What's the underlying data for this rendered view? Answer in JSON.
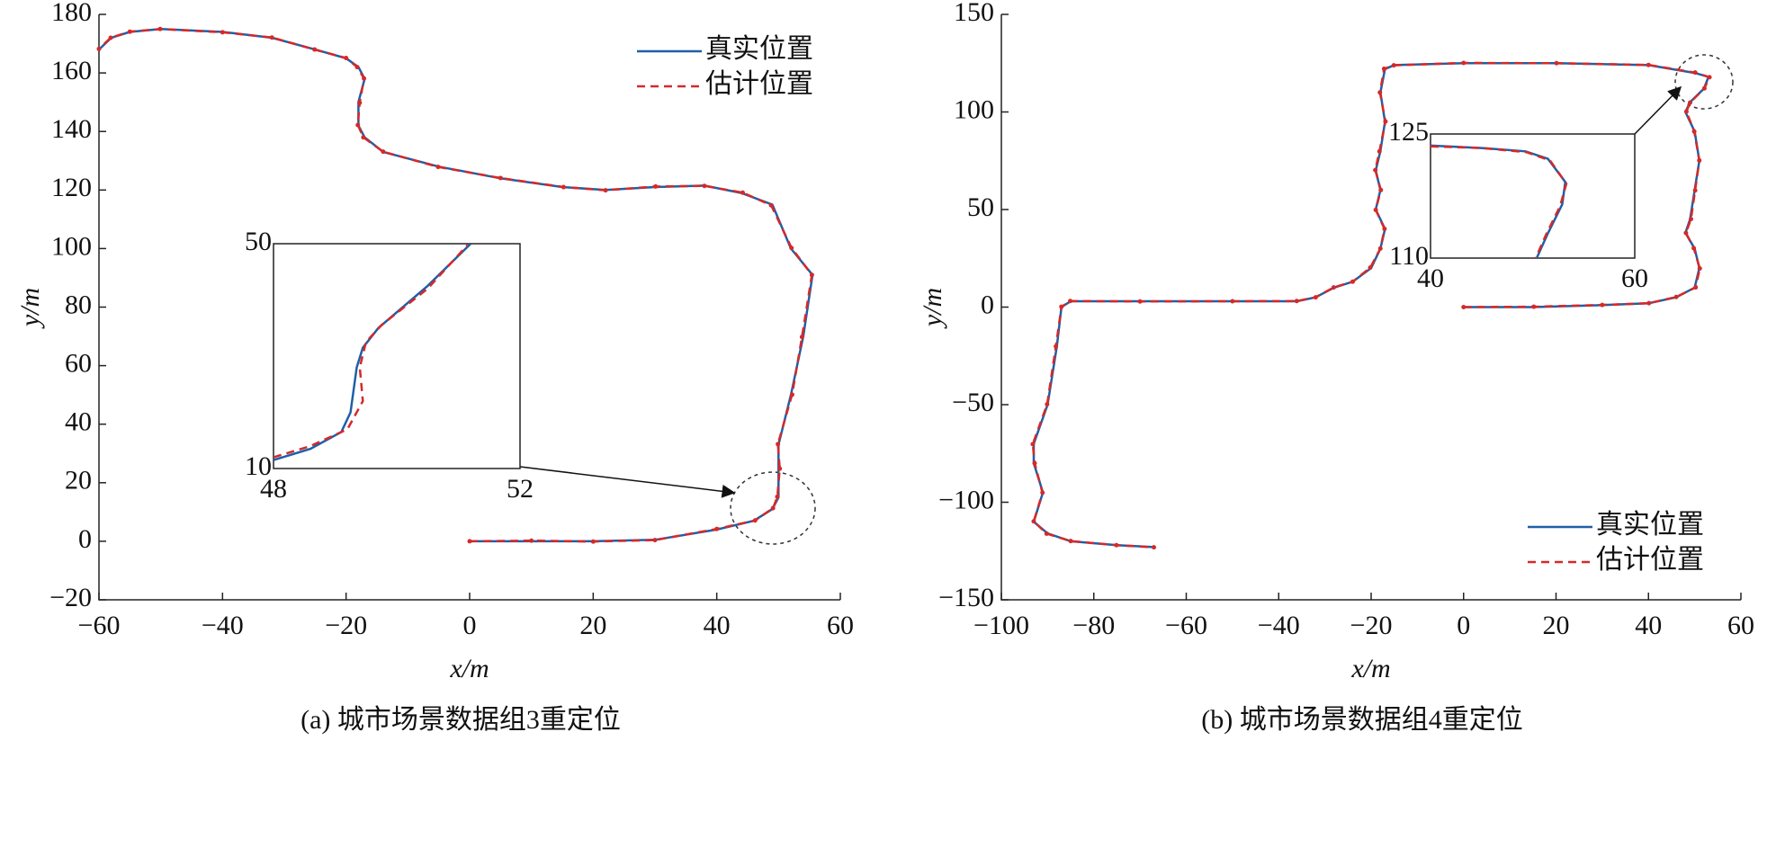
{
  "chart_data": [
    {
      "type": "line",
      "caption": "(a) 城市场景数据组3重定位",
      "xlabel": "x/m",
      "ylabel": "y/m",
      "xlim": [
        -60,
        60
      ],
      "ylim": [
        -20,
        180
      ],
      "xticks": [
        {
          "value": -60,
          "label": "−60"
        },
        {
          "value": -40,
          "label": "−40"
        },
        {
          "value": -20,
          "label": "−20"
        },
        0,
        20,
        40,
        60
      ],
      "yticks": [
        {
          "value": -20,
          "label": "−20"
        },
        0,
        20,
        40,
        60,
        80,
        100,
        120,
        140,
        160,
        180
      ],
      "legend": "top-right",
      "series": [
        {
          "name": "真实位置",
          "color": "#1f5fa8",
          "line_style": "solid",
          "x": [
            0,
            10,
            20,
            30,
            40,
            46,
            49,
            50,
            50,
            50,
            52,
            54,
            55.5,
            52,
            49,
            44,
            38,
            30,
            22,
            15,
            5,
            -5,
            -14,
            -17,
            -18,
            -18,
            -17,
            -18,
            -20,
            -25,
            -32,
            -40,
            -50,
            -55,
            -58,
            -60
          ],
          "values": [
            0,
            0,
            0,
            0.5,
            4,
            7,
            11,
            15,
            25,
            33,
            50,
            70,
            91,
            100,
            115,
            119,
            121.5,
            121,
            120,
            121,
            124,
            128,
            133,
            138,
            142,
            150,
            158,
            162,
            165,
            168,
            172,
            174,
            175,
            174,
            172,
            168
          ]
        },
        {
          "name": "估计位置",
          "color": "#d42a2a",
          "line_style": "dashed",
          "x": [
            0,
            10,
            20,
            30,
            40,
            46.2,
            49.1,
            49.8,
            50.2,
            49.9,
            52.2,
            53.8,
            55.4,
            52.1,
            48.8,
            44.2,
            38,
            30.1,
            22,
            15.2,
            5,
            -5.1,
            -14,
            -17.2,
            -18.1,
            -17.8,
            -17.1,
            -18.2,
            -20,
            -25.1,
            -32,
            -40,
            -50.1,
            -55,
            -58.1,
            -60
          ],
          "values": [
            0,
            0.2,
            -0.1,
            0.4,
            4.2,
            7.1,
            11.3,
            15.2,
            24.8,
            33.2,
            50.1,
            69.8,
            91,
            100.2,
            114.8,
            119.1,
            121.4,
            121.2,
            119.9,
            121,
            124.1,
            127.9,
            133.1,
            138,
            142.2,
            149.8,
            158.1,
            162,
            165.1,
            168,
            172.1,
            173.9,
            175,
            174.1,
            172,
            168.2
          ]
        }
      ],
      "inset": {
        "xlim": [
          48,
          52
        ],
        "ylim": [
          10,
          50
        ],
        "xticks": [
          48,
          52
        ],
        "yticks": [
          10,
          50
        ],
        "series": [
          {
            "x": [
              48,
              48.6,
              49.1,
              49.25,
              49.35,
              49.45,
              49.7,
              50.5,
              51.2
            ],
            "values": [
              11.5,
              13.5,
              16.5,
              20,
              28,
              31.5,
              35,
              42.5,
              50
            ]
          },
          {
            "x": [
              48,
              48.6,
              49.2,
              49.45,
              49.4,
              49.5,
              49.75,
              50.5,
              51.15
            ],
            "values": [
              12,
              14,
              17,
              22,
              28,
              32.5,
              35.5,
              42,
              49.8
            ]
          }
        ]
      }
    },
    {
      "type": "line",
      "caption": "(b) 城市场景数据组4重定位",
      "xlabel": "x/m",
      "ylabel": "y/m",
      "xlim": [
        -100,
        60
      ],
      "ylim": [
        -150,
        150
      ],
      "xticks": [
        {
          "value": -100,
          "label": "−100"
        },
        {
          "value": -80,
          "label": "−80"
        },
        {
          "value": -60,
          "label": "−60"
        },
        {
          "value": -40,
          "label": "−40"
        },
        {
          "value": -20,
          "label": "−20"
        },
        0,
        20,
        40,
        60
      ],
      "yticks": [
        {
          "value": -150,
          "label": "−150"
        },
        {
          "value": -100,
          "label": "−100"
        },
        {
          "value": -50,
          "label": "−50"
        },
        0,
        50,
        100,
        150
      ],
      "legend": "bottom-right",
      "series": [
        {
          "name": "真实位置",
          "color": "#1f5fa8",
          "line_style": "solid",
          "x": [
            0,
            15,
            30,
            40,
            46,
            50,
            51,
            50,
            48,
            49,
            50,
            51,
            50,
            48,
            49,
            52,
            53,
            50,
            40,
            20,
            0,
            -15,
            -17,
            -18,
            -17,
            -18,
            -19,
            -18,
            -19,
            -17,
            -18,
            -20,
            -24,
            -28,
            -32,
            -36,
            -50,
            -70,
            -85,
            -87,
            -88,
            -90,
            -93,
            -93,
            -91,
            -93,
            -90,
            -85,
            -75,
            -67
          ],
          "values": [
            0,
            0,
            1,
            2,
            5,
            10,
            20,
            30,
            38,
            45,
            60,
            75,
            90,
            100,
            105,
            112,
            118,
            120,
            124,
            125,
            125,
            124,
            122,
            110,
            95,
            80,
            70,
            60,
            50,
            40,
            30,
            20,
            13,
            10,
            5,
            3,
            3,
            3,
            3,
            0,
            -20,
            -50,
            -70,
            -80,
            -95,
            -110,
            -116,
            -120,
            -122,
            -123
          ]
        },
        {
          "name": "估计位置",
          "color": "#d42a2a",
          "line_style": "dashed",
          "x": [
            0,
            15.2,
            30,
            40.1,
            46,
            50.2,
            51.1,
            49.8,
            48.1,
            49.2,
            50.1,
            51,
            49.9,
            48.2,
            49,
            52.1,
            53.2,
            50.1,
            40,
            20.1,
            0,
            -15.1,
            -17.2,
            -18.1,
            -16.9,
            -18.2,
            -19.1,
            -17.9,
            -19,
            -17.1,
            -18,
            -20.2,
            -24,
            -28.1,
            -32,
            -36.1,
            -50,
            -70,
            -85.1,
            -87,
            -88.2,
            -90.1,
            -93.2,
            -92.8,
            -91.1,
            -93,
            -90.2,
            -85,
            -75.1,
            -67
          ],
          "values": [
            0,
            0.2,
            1.1,
            2,
            5.2,
            10.1,
            19.8,
            30.2,
            38,
            45.1,
            59.8,
            75.2,
            90,
            100.2,
            104.8,
            112.1,
            117.8,
            120.2,
            124.1,
            125,
            125.1,
            123.9,
            122.1,
            110,
            95.1,
            79.8,
            70.2,
            60,
            49.8,
            40.1,
            30,
            20.2,
            13,
            10.1,
            5,
            3.1,
            3,
            2.9,
            3.1,
            0.2,
            -20.1,
            -49.8,
            -70.2,
            -80,
            -95.1,
            -109.8,
            -116.1,
            -119.9,
            -122,
            -123.1
          ]
        }
      ],
      "inset": {
        "xlim": [
          40,
          60
        ],
        "ylim": [
          110,
          125
        ],
        "xticks": [
          40,
          60
        ],
        "yticks": [
          110,
          125
        ],
        "series": [
          {
            "x": [
              40,
              45,
              49.3,
              51.5,
              53.2,
              52.9,
              51.5,
              50.4
            ],
            "values": [
              123.6,
              123.3,
              122.9,
              122,
              119.2,
              116.5,
              113,
              110
            ]
          },
          {
            "x": [
              40,
              45,
              49.4,
              51.7,
              53.3,
              52.7,
              51.3,
              50.3
            ],
            "values": [
              123.5,
              123.3,
              122.8,
              121.8,
              119,
              116.3,
              112.8,
              110
            ]
          }
        ]
      }
    }
  ]
}
